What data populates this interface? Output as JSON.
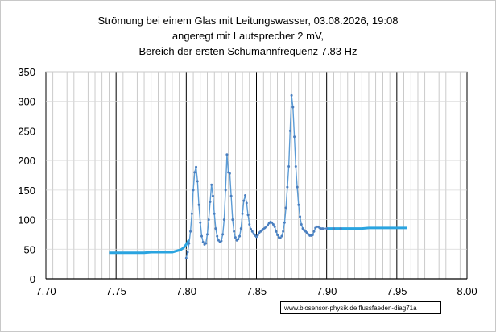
{
  "chart_data": {
    "type": "line",
    "title_lines": [
      "Strömung bei einem Glas mit  Leitungswasser, 03.08.2026, 19:08",
      "angeregt mit Lautsprecher 2 mV,",
      "Bereich der ersten Schumannfrequenz 7.83 Hz"
    ],
    "xlabel": "",
    "ylabel": "",
    "xlim": [
      7.7,
      8.0
    ],
    "ylim": [
      0,
      350
    ],
    "x_ticks": [
      "7.70",
      "7.75",
      "7.80",
      "7.85",
      "7.90",
      "7.95",
      "8.00"
    ],
    "y_ticks": [
      "0",
      "50",
      "100",
      "150",
      "200",
      "250",
      "300",
      "350"
    ],
    "grid": true,
    "legend": "none",
    "credit": "www.biosensor-physik.de  flussfaeden-diag71a",
    "colors": {
      "baseline": "#2aa4e0",
      "peaks": "#5b9bd5",
      "grid_minor": "#b4b4b4",
      "grid_major": "#000000"
    },
    "series": [
      {
        "values": [
          [
            7.745,
            44
          ],
          [
            7.75,
            44
          ],
          [
            7.755,
            44
          ],
          [
            7.76,
            44
          ],
          [
            7.765,
            44
          ],
          [
            7.77,
            44
          ],
          [
            7.775,
            45
          ],
          [
            7.78,
            45
          ],
          [
            7.785,
            45
          ],
          [
            7.79,
            45
          ],
          [
            7.793,
            47
          ],
          [
            7.796,
            49
          ],
          [
            7.798,
            52
          ],
          [
            7.8,
            58
          ],
          [
            7.802,
            66
          ]
        ]
      },
      {
        "values": [
          [
            7.8,
            35
          ],
          [
            7.801,
            45
          ],
          [
            7.802,
            60
          ],
          [
            7.803,
            80
          ],
          [
            7.804,
            110
          ],
          [
            7.805,
            150
          ],
          [
            7.806,
            180
          ],
          [
            7.807,
            189
          ],
          [
            7.808,
            165
          ],
          [
            7.809,
            125
          ],
          [
            7.81,
            95
          ],
          [
            7.811,
            72
          ],
          [
            7.812,
            62
          ],
          [
            7.813,
            58
          ],
          [
            7.814,
            60
          ],
          [
            7.815,
            75
          ],
          [
            7.816,
            100
          ],
          [
            7.817,
            130
          ],
          [
            7.818,
            159
          ],
          [
            7.819,
            140
          ],
          [
            7.82,
            110
          ],
          [
            7.821,
            85
          ],
          [
            7.822,
            72
          ],
          [
            7.823,
            65
          ],
          [
            7.824,
            62
          ],
          [
            7.825,
            64
          ],
          [
            7.826,
            75
          ],
          [
            7.827,
            100
          ],
          [
            7.828,
            150
          ],
          [
            7.829,
            210
          ],
          [
            7.83,
            180
          ],
          [
            7.831,
            178
          ],
          [
            7.832,
            140
          ],
          [
            7.833,
            100
          ],
          [
            7.834,
            80
          ],
          [
            7.835,
            70
          ],
          [
            7.836,
            65
          ],
          [
            7.837,
            67
          ],
          [
            7.838,
            72
          ],
          [
            7.839,
            85
          ],
          [
            7.84,
            110
          ],
          [
            7.841,
            132
          ],
          [
            7.842,
            141
          ],
          [
            7.843,
            128
          ],
          [
            7.844,
            108
          ],
          [
            7.845,
            92
          ],
          [
            7.846,
            84
          ],
          [
            7.847,
            80
          ],
          [
            7.848,
            76
          ],
          [
            7.849,
            73
          ],
          [
            7.85,
            71
          ],
          [
            7.851,
            74
          ],
          [
            7.852,
            78
          ],
          [
            7.853,
            80
          ],
          [
            7.854,
            82
          ],
          [
            7.855,
            84
          ],
          [
            7.856,
            86
          ],
          [
            7.857,
            88
          ],
          [
            7.858,
            91
          ],
          [
            7.859,
            94
          ],
          [
            7.86,
            96
          ],
          [
            7.861,
            95
          ],
          [
            7.862,
            92
          ],
          [
            7.863,
            88
          ],
          [
            7.864,
            80
          ],
          [
            7.865,
            74
          ],
          [
            7.866,
            70
          ],
          [
            7.867,
            69
          ],
          [
            7.868,
            72
          ],
          [
            7.869,
            80
          ],
          [
            7.87,
            95
          ],
          [
            7.871,
            120
          ],
          [
            7.872,
            155
          ],
          [
            7.873,
            190
          ],
          [
            7.874,
            250
          ],
          [
            7.875,
            310
          ],
          [
            7.876,
            290
          ],
          [
            7.877,
            240
          ],
          [
            7.878,
            190
          ],
          [
            7.879,
            155
          ],
          [
            7.88,
            125
          ],
          [
            7.881,
            105
          ],
          [
            7.882,
            92
          ],
          [
            7.883,
            85
          ],
          [
            7.884,
            82
          ],
          [
            7.885,
            80
          ],
          [
            7.886,
            78
          ],
          [
            7.887,
            75
          ],
          [
            7.888,
            73
          ],
          [
            7.889,
            73
          ],
          [
            7.89,
            74
          ],
          [
            7.891,
            80
          ],
          [
            7.892,
            86
          ],
          [
            7.893,
            88
          ],
          [
            7.894,
            88
          ],
          [
            7.895,
            86
          ],
          [
            7.896,
            85
          ],
          [
            7.897,
            85
          ],
          [
            7.898,
            85
          ],
          [
            7.9,
            85
          ],
          [
            7.905,
            85
          ],
          [
            7.91,
            85
          ]
        ]
      },
      {
        "values": [
          [
            7.9,
            85
          ],
          [
            7.905,
            85
          ],
          [
            7.91,
            85
          ],
          [
            7.915,
            85
          ],
          [
            7.92,
            85
          ],
          [
            7.925,
            85
          ],
          [
            7.93,
            86
          ],
          [
            7.935,
            86
          ],
          [
            7.94,
            86
          ],
          [
            7.945,
            86
          ],
          [
            7.95,
            86
          ],
          [
            7.955,
            86
          ],
          [
            7.957,
            86
          ]
        ]
      }
    ]
  }
}
